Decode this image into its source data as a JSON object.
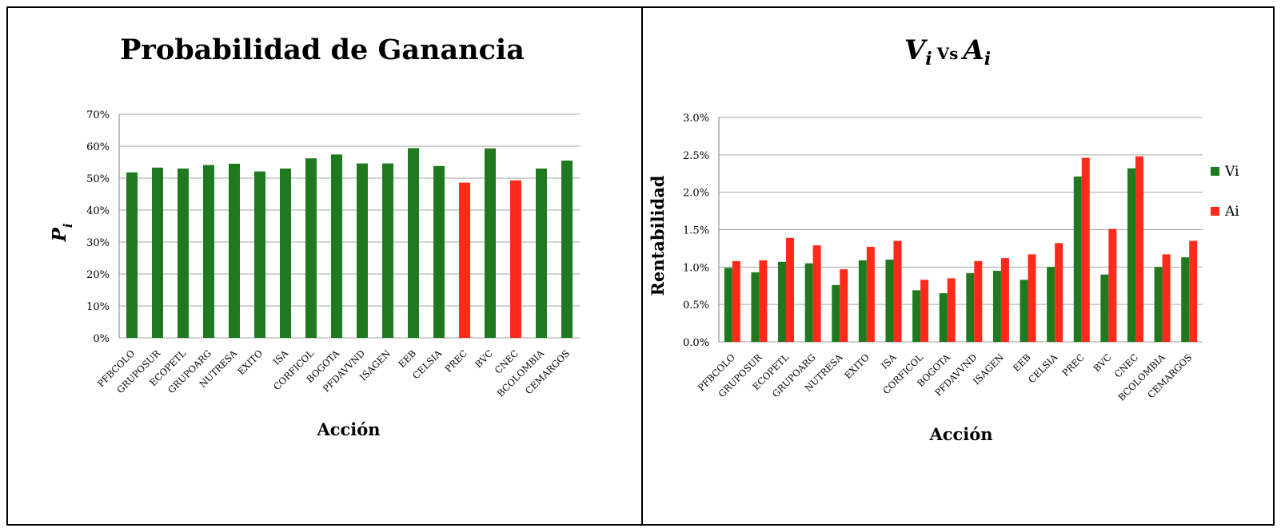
{
  "colors": {
    "green": "#1f7a1f",
    "red": "#ff2a1a",
    "grid": "#a6a6a6",
    "axis": "#7f7f7f"
  },
  "chart_data": [
    {
      "type": "bar",
      "title": "Probabilidad de Ganancia",
      "xlabel": "Acción",
      "ylabel_main": "P",
      "ylabel_sub": "i",
      "yticks": [
        "0%",
        "10%",
        "20%",
        "30%",
        "40%",
        "50%",
        "60%",
        "70%"
      ],
      "ylim": [
        0,
        0.7
      ],
      "grid": true,
      "categories": [
        "PFBCOLO",
        "GRUPOSUR",
        "ECOPETL",
        "GRUPOARG",
        "NUTRESA",
        "EXITO",
        "ISA",
        "CORFICOL",
        "BOGOTA",
        "PFDAVVND",
        "ISAGEN",
        "EEB",
        "CELSIA",
        "PREC",
        "BVC",
        "CNEC",
        "BCOLOMBIA",
        "CEMARGOS"
      ],
      "values": [
        0.518,
        0.533,
        0.53,
        0.541,
        0.545,
        0.521,
        0.53,
        0.562,
        0.574,
        0.546,
        0.546,
        0.594,
        0.538,
        0.486,
        0.593,
        0.493,
        0.53,
        0.555
      ],
      "bar_colors": [
        "green",
        "green",
        "green",
        "green",
        "green",
        "green",
        "green",
        "green",
        "green",
        "green",
        "green",
        "green",
        "green",
        "red",
        "green",
        "red",
        "green",
        "green"
      ]
    },
    {
      "type": "bar",
      "title_v": "V",
      "title_v_sub": "i",
      "title_vs": "Vs",
      "title_a": "A",
      "title_a_sub": "i",
      "xlabel": "Acción",
      "ylabel": "Rentabilidad",
      "yticks": [
        "0.0%",
        "0.5%",
        "1.0%",
        "1.5%",
        "2.0%",
        "2.5%",
        "3.0%"
      ],
      "ylim": [
        0,
        0.03
      ],
      "grid": true,
      "legend_position": "right",
      "categories": [
        "PFBCOLO",
        "GRUPOSUR",
        "ECOPETL",
        "GRUPOARG",
        "NUTRESA",
        "EXITO",
        "ISA",
        "CORFICOL",
        "BOGOTA",
        "PFDAVVND",
        "ISAGEN",
        "EEB",
        "CELSIA",
        "PREC",
        "BVC",
        "CNEC",
        "BCOLOMBIA",
        "CEMARGOS"
      ],
      "series": [
        {
          "name": "Vi",
          "color": "green",
          "values": [
            0.0099,
            0.0093,
            0.0107,
            0.0105,
            0.0076,
            0.0109,
            0.011,
            0.0069,
            0.0065,
            0.0092,
            0.0095,
            0.0083,
            0.01,
            0.0221,
            0.009,
            0.0232,
            0.01,
            0.0113
          ]
        },
        {
          "name": "Ai",
          "color": "red",
          "values": [
            0.0108,
            0.0109,
            0.0139,
            0.0129,
            0.0097,
            0.0127,
            0.0135,
            0.0083,
            0.0085,
            0.0108,
            0.0112,
            0.0117,
            0.0132,
            0.0246,
            0.0151,
            0.0248,
            0.0117,
            0.0135
          ]
        }
      ]
    }
  ]
}
